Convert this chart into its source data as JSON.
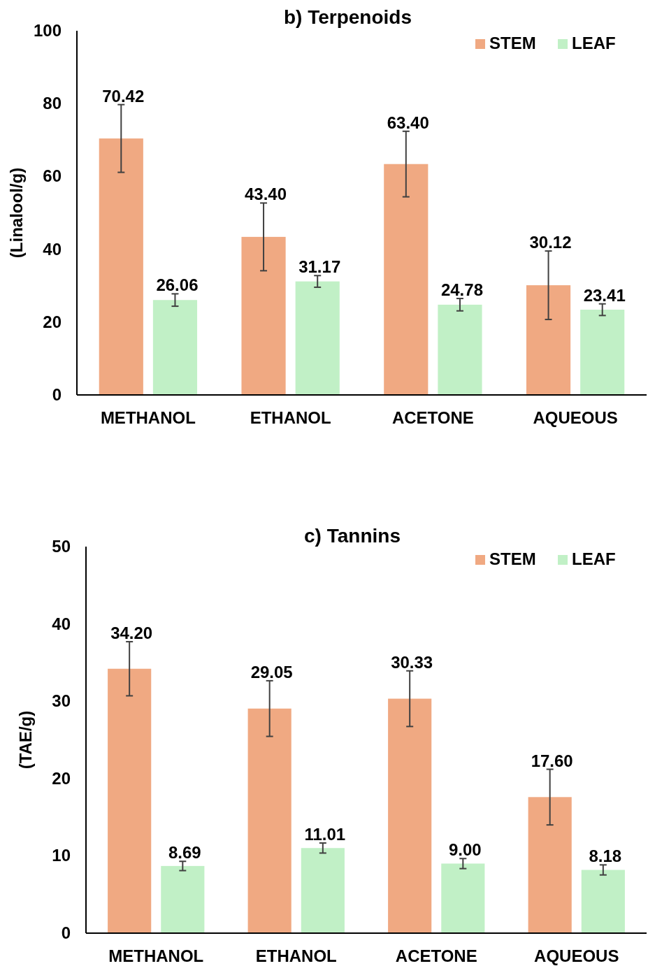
{
  "chart_data": [
    {
      "type": "bar",
      "title": "b) Terpenoids",
      "ylabel": "(Linalool/g)",
      "categories": [
        "METHANOL",
        "ETHANOL",
        "ACETONE",
        "AQUEOUS"
      ],
      "ylim": [
        0,
        100
      ],
      "yticks": [
        0,
        20,
        40,
        60,
        80,
        100
      ],
      "grid": false,
      "legend": "top right",
      "series": [
        {
          "name": "STEM",
          "color": "#f0a982",
          "values": [
            70.42,
            43.4,
            63.4,
            30.12
          ],
          "value_labels": [
            "70.42",
            "43.40",
            "63.40",
            "30.12"
          ],
          "errors": [
            9.3,
            9.3,
            9,
            9.4
          ]
        },
        {
          "name": "LEAF",
          "color": "#c1f0c6",
          "values": [
            26.06,
            31.17,
            24.78,
            23.41
          ],
          "value_labels": [
            "26.06",
            "31.17",
            "24.78",
            "23.41"
          ],
          "errors": [
            1.7,
            1.6,
            1.7,
            1.6
          ]
        }
      ]
    },
    {
      "type": "bar",
      "title": "c) Tannins",
      "ylabel": "(TAE/g)",
      "categories": [
        "METHANOL",
        "ETHANOL",
        "ACETONE",
        "AQUEOUS"
      ],
      "ylim": [
        0,
        50
      ],
      "yticks": [
        0,
        10,
        20,
        30,
        40,
        50
      ],
      "grid": false,
      "legend": "top right",
      "series": [
        {
          "name": "STEM",
          "color": "#f0a982",
          "values": [
            34.2,
            29.05,
            30.33,
            17.6
          ],
          "value_labels": [
            "34.20",
            "29.05",
            "30.33",
            "17.60"
          ],
          "errors": [
            3.5,
            3.6,
            3.6,
            3.6
          ]
        },
        {
          "name": "LEAF",
          "color": "#c1f0c6",
          "values": [
            8.69,
            11.01,
            9.0,
            8.18
          ],
          "value_labels": [
            "8.69",
            "11.01",
            "9.00",
            "8.18"
          ],
          "errors": [
            0.6,
            0.65,
            0.65,
            0.65
          ]
        }
      ]
    }
  ]
}
